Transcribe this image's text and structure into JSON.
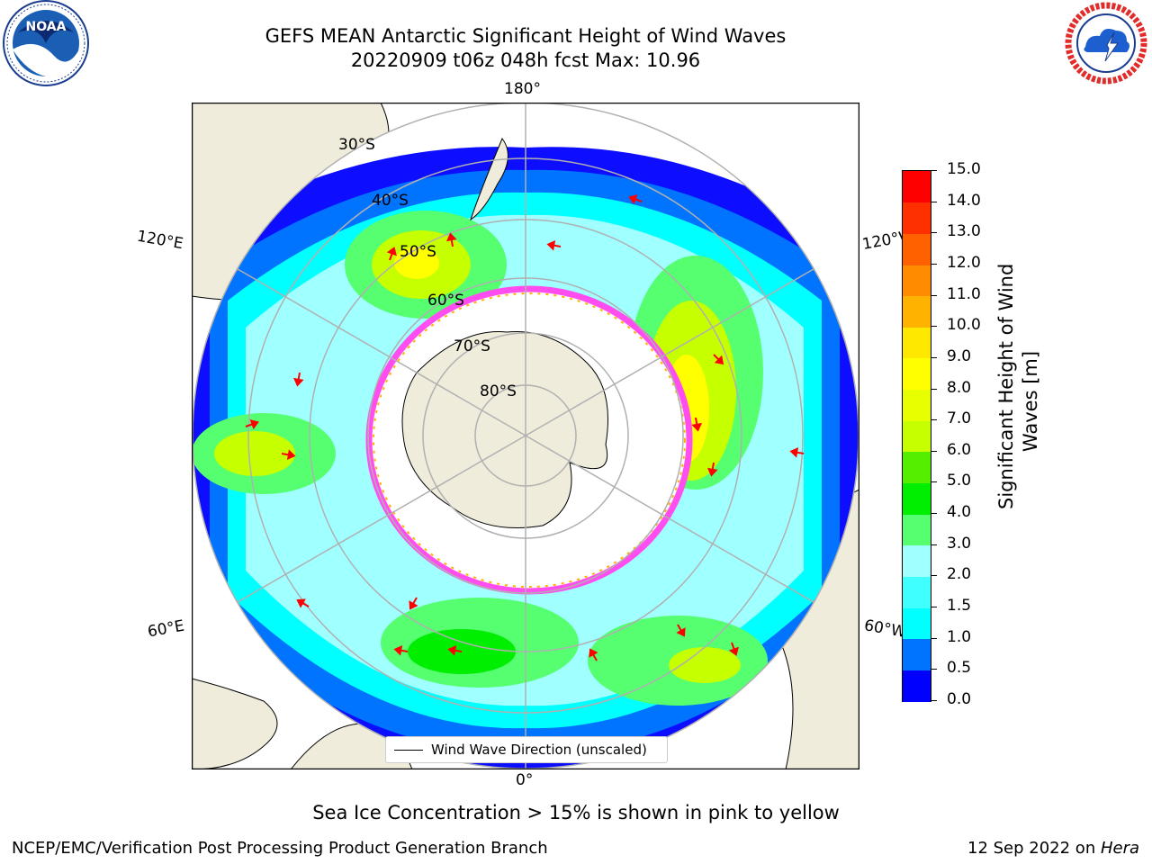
{
  "title": {
    "line1": "GEFS MEAN Antarctic Significant Height of Wind Waves",
    "line2": "20220909 t06z 048h fcst   Max: 10.96"
  },
  "logos": {
    "left": {
      "name": "NOAA",
      "ring_text": "NATIONAL OCEANIC AND ATMOSPHERIC ADMINISTRATION · U.S. DEPARTMENT OF COMMERCE"
    },
    "right": {
      "name": "NATIONAL WEATHER SERVICE"
    }
  },
  "map": {
    "projection": "south-polar-stereographic",
    "longitude_labels": [
      "180°",
      "120°E",
      "120°W",
      "60°E",
      "60°W",
      "0°"
    ],
    "latitude_labels": [
      "30°S",
      "40°S",
      "50°S",
      "60°S",
      "70°S",
      "80°S"
    ],
    "legend": "Wind Wave Direction (unscaled)",
    "colors": {
      "land": "#efecdc",
      "ocean_background": "#ffffff",
      "sea_ice": "#ff4df0",
      "arrow": "#ff0000",
      "grid": "#b0b0b0"
    }
  },
  "colorbar": {
    "label_line1": "Significant Height of Wind",
    "label_line2": "Waves [m]",
    "ticks": [
      "0.0",
      "0.5",
      "1.0",
      "1.5",
      "2.0",
      "3.0",
      "4.0",
      "5.0",
      "6.0",
      "7.0",
      "8.0",
      "9.0",
      "10.0",
      "11.0",
      "12.0",
      "13.0",
      "14.0",
      "15.0"
    ],
    "colors": [
      "#0000ff",
      "#0073ff",
      "#00ffff",
      "#40ffff",
      "#a0ffff",
      "#55ff70",
      "#00ee00",
      "#55ee00",
      "#c5ff00",
      "#e8ff00",
      "#ffff00",
      "#ffe800",
      "#ffb300",
      "#ff8c00",
      "#ff6000",
      "#ff3000",
      "#ff0000"
    ]
  },
  "notes": {
    "sea_ice": "Sea Ice Concentration > 15% is shown in pink to yellow"
  },
  "footer": {
    "left": "NCEP/EMC/Verification Post Processing Product Generation Branch",
    "date": "12 Sep 2022 on ",
    "host": "Hera"
  }
}
